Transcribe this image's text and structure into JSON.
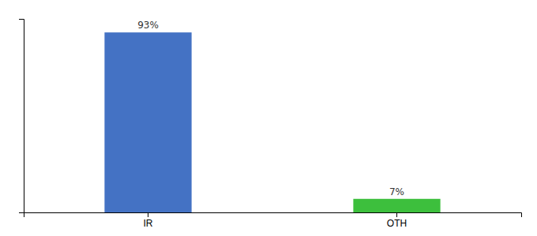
{
  "chart_data": {
    "type": "bar",
    "categories": [
      "IR",
      "OTH"
    ],
    "values": [
      93,
      7
    ],
    "value_labels": [
      "93%",
      "7%"
    ],
    "colors": [
      "#4472c4",
      "#3dbf3d"
    ],
    "ylim": [
      0,
      100
    ],
    "grid": false,
    "data_labels": true,
    "tick_labels": "x"
  }
}
